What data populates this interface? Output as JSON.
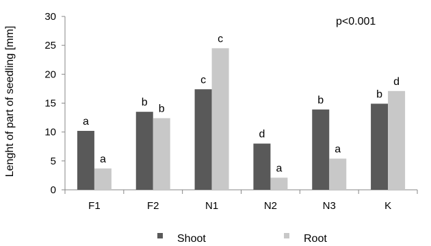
{
  "chart_data": {
    "type": "bar",
    "title": "",
    "xlabel": "",
    "ylabel": "Lenght of part of seedling [mm]",
    "annotation": "p<0.001",
    "categories": [
      "F1",
      "F2",
      "N1",
      "N2",
      "N3",
      "K"
    ],
    "ylim": [
      0,
      30
    ],
    "yticks": [
      0,
      5,
      10,
      15,
      20,
      25,
      30
    ],
    "grid": false,
    "legend_position": "bottom",
    "series": [
      {
        "name": "Shoot",
        "color": "#595959",
        "values": [
          10.2,
          13.5,
          17.4,
          8.0,
          13.9,
          14.9
        ],
        "labels": [
          "a",
          "b",
          "c",
          "d",
          "b",
          "b"
        ]
      },
      {
        "name": "Root",
        "color": "#c8c8c8",
        "values": [
          3.7,
          12.4,
          24.5,
          2.1,
          5.4,
          17.1
        ],
        "labels": [
          "a",
          "b",
          "c",
          "a",
          "a",
          "d"
        ]
      }
    ]
  }
}
